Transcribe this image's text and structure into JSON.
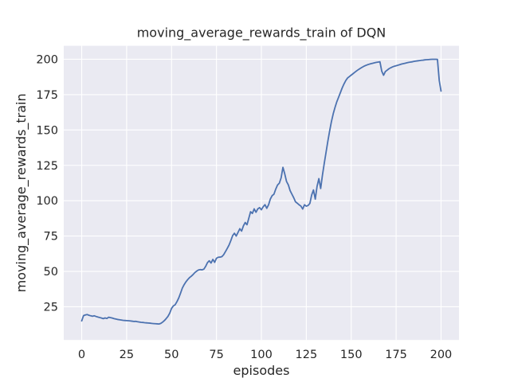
{
  "figure": {
    "background_color": "#ffffff",
    "plot_background_color": "#eaeaf2",
    "gridline_color": "#ffffff",
    "text_color": "#262626"
  },
  "chart_data": {
    "type": "line",
    "title": "moving_average_rewards_train of DQN",
    "xlabel": "episodes",
    "ylabel": "moving_average_rewards_train",
    "xlim": [
      -10,
      210
    ],
    "ylim": [
      1.5,
      209.5
    ],
    "xticks": [
      0,
      25,
      50,
      75,
      100,
      125,
      150,
      175,
      200
    ],
    "yticks": [
      25,
      50,
      75,
      100,
      125,
      150,
      175,
      200
    ],
    "grid": true,
    "legend": "none",
    "series": [
      {
        "name": "moving_average_rewards_train",
        "color": "#4c72b0",
        "x_start": 0,
        "x_step": 1,
        "values": [
          15.0,
          18.7,
          19.2,
          19.5,
          19.0,
          18.6,
          18.3,
          18.6,
          18.1,
          17.7,
          17.4,
          17.0,
          16.6,
          17.1,
          16.7,
          17.6,
          17.3,
          17.0,
          16.6,
          16.3,
          16.0,
          15.8,
          15.6,
          15.4,
          15.3,
          15.2,
          15.1,
          15.0,
          14.8,
          14.6,
          14.7,
          14.4,
          14.2,
          14.0,
          13.9,
          13.7,
          13.6,
          13.5,
          13.4,
          13.2,
          13.1,
          13.0,
          12.9,
          12.8,
          13.2,
          14.1,
          15.2,
          16.6,
          18.2,
          20.5,
          23.8,
          25.6,
          26.4,
          28.6,
          31.2,
          34.6,
          38.2,
          40.6,
          42.6,
          44.2,
          45.6,
          46.6,
          47.8,
          49.2,
          50.2,
          51.0,
          51.3,
          51.1,
          51.6,
          53.6,
          56.2,
          57.5,
          55.9,
          58.5,
          56.4,
          59.3,
          60.0,
          60.1,
          60.4,
          61.8,
          64.0,
          66.2,
          68.6,
          71.8,
          75.3,
          77.0,
          75.0,
          77.6,
          80.2,
          78.5,
          82.2,
          84.6,
          83.0,
          87.6,
          92.2,
          91.0,
          94.2,
          91.8,
          94.2,
          95.1,
          93.6,
          95.7,
          97.2,
          94.6,
          97.1,
          101.2,
          103.6,
          104.6,
          108.2,
          111.1,
          112.4,
          116.2,
          123.6,
          119.0,
          113.6,
          111.2,
          107.1,
          104.6,
          102.1,
          99.2,
          98.2,
          97.1,
          96.2,
          94.1,
          97.1,
          96.1,
          96.6,
          98.1,
          104.1,
          107.6,
          101.1,
          110.2,
          115.6,
          108.6,
          118.1,
          126.4,
          134.2,
          142.1,
          149.3,
          156.0,
          161.5,
          166.0,
          170.0,
          173.2,
          176.5,
          179.8,
          182.6,
          185.0,
          186.8,
          187.8,
          188.8,
          189.8,
          190.8,
          191.8,
          192.7,
          193.5,
          194.3,
          195.0,
          195.6,
          196.1,
          196.5,
          196.9,
          197.2,
          197.5,
          197.8,
          198.0,
          198.2,
          191.6,
          188.7,
          191.3,
          192.3,
          193.3,
          194.0,
          194.6,
          195.1,
          195.4,
          195.8,
          196.2,
          196.6,
          196.9,
          197.2,
          197.5,
          197.8,
          198.0,
          198.2,
          198.5,
          198.7,
          198.9,
          199.1,
          199.3,
          199.4,
          199.6,
          199.7,
          199.8,
          199.9,
          200.0,
          200.0,
          200.0,
          199.9,
          185.0,
          177.5
        ]
      }
    ]
  }
}
